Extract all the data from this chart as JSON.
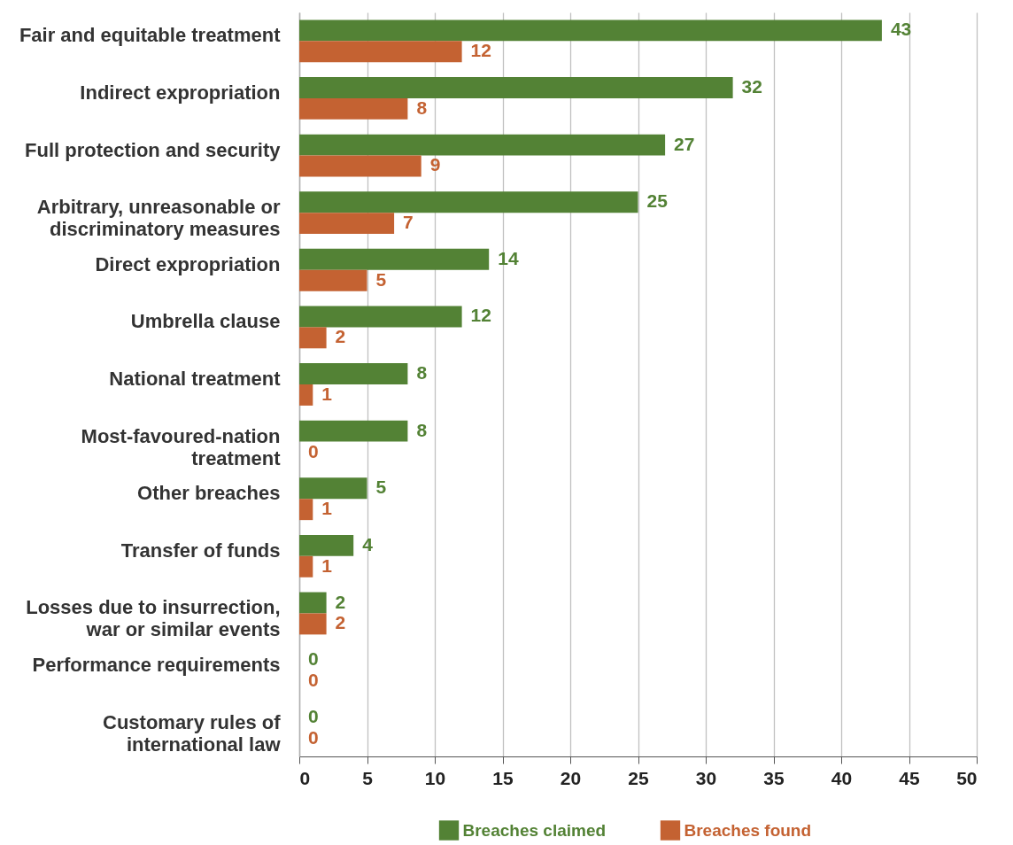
{
  "chart_data": {
    "type": "bar",
    "orientation": "horizontal",
    "categories": [
      "Fair and equitable treatment",
      "Indirect expropriation",
      "Full protection and security",
      "Arbitrary, unreasonable or discriminatory measures",
      "Direct expropriation",
      "Umbrella clause",
      "National treatment",
      "Most-favoured-nation treatment",
      "Other breaches",
      "Transfer of funds",
      "Losses due to insurrection, war or similar events",
      "Performance requirements",
      "Customary rules of international law"
    ],
    "series": [
      {
        "name": "Breaches claimed",
        "color": "#538235",
        "values": [
          43,
          32,
          27,
          25,
          14,
          12,
          8,
          8,
          5,
          4,
          2,
          0,
          0
        ]
      },
      {
        "name": "Breaches found",
        "color": "#c46232",
        "values": [
          12,
          8,
          9,
          7,
          5,
          2,
          1,
          0,
          1,
          1,
          2,
          0,
          0
        ]
      }
    ],
    "xlim": [
      0,
      50
    ],
    "xticks": [
      0,
      5,
      10,
      15,
      20,
      25,
      30,
      35,
      40,
      45,
      50
    ],
    "grid": "x",
    "legend": "bottom",
    "data_labels": true
  }
}
